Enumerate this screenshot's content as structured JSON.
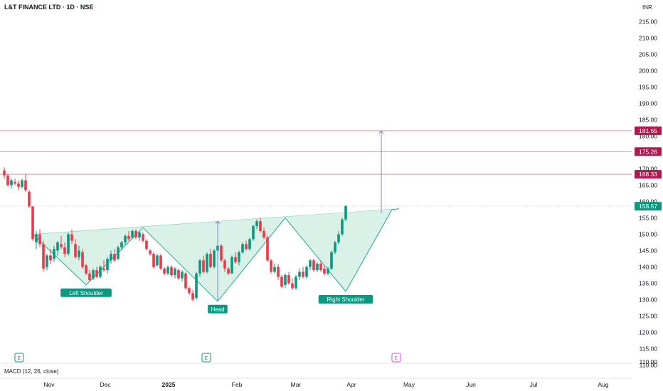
{
  "header": {
    "title": "L&T FINANCE LTD · 1D · NSE",
    "currency": "INR"
  },
  "indicator": {
    "macd_label": "MACD (12, 26, close)"
  },
  "chart_data": {
    "type": "candlestick",
    "title": "L&T FINANCE LTD · 1D · NSE",
    "ylim": [
      107,
      218
    ],
    "y_ticks": [
      110,
      115,
      120,
      125,
      130,
      135,
      140,
      145,
      150,
      155,
      160,
      165,
      170,
      175,
      180,
      185,
      190,
      195,
      200,
      205,
      210,
      215
    ],
    "y_tick_labels": [
      "110.00",
      "115.00",
      "120.00",
      "125.00",
      "130.00",
      "135.00",
      "140.00",
      "145.00",
      "150.00",
      "155.00",
      "160.00",
      "165.00",
      "170.00",
      "175.00",
      "180.00",
      "185.00",
      "190.00",
      "195.00",
      "200.00",
      "205.00",
      "210.00",
      "215.00"
    ],
    "x_tick_labels": [
      "Nov",
      "Dec",
      "2025",
      "Feb",
      "Mar",
      "Apr",
      "May",
      "Jun",
      "Jul",
      "Aug"
    ],
    "last_price": 158.57,
    "colors": {
      "up": "#089981",
      "down": "#f23645",
      "level": "#e291a8",
      "badge": "#b2184e",
      "price_badge": "#089981",
      "pattern_fill": "#ccecdf",
      "pattern_line": "#22ab94",
      "arrow": "#7c86d1"
    },
    "price_levels": [
      {
        "value": 181.65,
        "label": "181.65"
      },
      {
        "value": 175.26,
        "label": "175.26"
      },
      {
        "value": 168.33,
        "label": "168.33"
      }
    ],
    "price_label": "158.57",
    "candles_ohlc": [
      [
        169.5,
        170.5,
        167.0,
        168.0
      ],
      [
        168.0,
        168.5,
        164.5,
        165.0
      ],
      [
        165.0,
        167.0,
        164.0,
        166.5
      ],
      [
        166.0,
        167.0,
        165.0,
        165.5
      ],
      [
        165.5,
        166.5,
        163.5,
        164.5
      ],
      [
        164.5,
        167.0,
        164.0,
        166.5
      ],
      [
        166.5,
        168.5,
        163.0,
        163.5
      ],
      [
        163.0,
        163.5,
        158.0,
        158.5
      ],
      [
        158.5,
        158.5,
        148.0,
        148.5
      ],
      [
        147.5,
        151.0,
        145.5,
        150.0
      ],
      [
        150.0,
        151.5,
        146.0,
        147.0
      ],
      [
        147.0,
        148.0,
        138.5,
        139.5
      ],
      [
        140.0,
        144.0,
        139.0,
        143.5
      ],
      [
        143.5,
        145.5,
        141.0,
        142.0
      ],
      [
        142.5,
        146.5,
        141.5,
        145.5
      ],
      [
        145.0,
        148.0,
        143.5,
        147.5
      ],
      [
        147.0,
        149.5,
        145.5,
        146.0
      ],
      [
        146.0,
        147.5,
        143.0,
        144.0
      ],
      [
        144.0,
        150.5,
        143.5,
        150.0
      ],
      [
        150.0,
        151.5,
        147.0,
        148.0
      ],
      [
        147.0,
        148.5,
        142.5,
        143.0
      ],
      [
        143.0,
        146.5,
        142.0,
        145.0
      ],
      [
        144.5,
        145.5,
        139.5,
        140.0
      ],
      [
        140.5,
        141.0,
        137.5,
        138.0
      ],
      [
        138.0,
        139.0,
        135.5,
        136.0
      ],
      [
        136.5,
        139.5,
        136.0,
        139.0
      ],
      [
        139.0,
        140.0,
        136.5,
        137.0
      ],
      [
        137.0,
        140.5,
        136.5,
        140.0
      ],
      [
        139.5,
        142.0,
        138.5,
        139.0
      ],
      [
        139.0,
        143.0,
        138.0,
        142.5
      ],
      [
        142.0,
        145.0,
        141.0,
        144.0
      ],
      [
        144.0,
        145.5,
        141.5,
        142.0
      ],
      [
        142.5,
        146.5,
        142.0,
        146.0
      ],
      [
        146.0,
        148.0,
        145.0,
        147.5
      ],
      [
        147.5,
        150.0,
        146.5,
        149.5
      ],
      [
        149.5,
        151.0,
        148.0,
        148.5
      ],
      [
        149.0,
        151.5,
        148.5,
        151.0
      ],
      [
        151.0,
        151.5,
        148.5,
        149.0
      ],
      [
        149.0,
        151.0,
        148.0,
        150.5
      ],
      [
        150.0,
        150.5,
        147.5,
        148.0
      ],
      [
        148.0,
        148.5,
        145.0,
        145.5
      ],
      [
        145.0,
        145.5,
        143.5,
        144.0
      ],
      [
        144.0,
        144.5,
        139.5,
        140.0
      ],
      [
        140.5,
        144.0,
        140.0,
        143.5
      ],
      [
        143.5,
        144.0,
        139.0,
        139.5
      ],
      [
        139.5,
        140.0,
        137.5,
        138.0
      ],
      [
        138.0,
        140.5,
        137.5,
        140.0
      ],
      [
        140.0,
        140.5,
        137.0,
        137.5
      ],
      [
        137.5,
        140.0,
        136.5,
        139.5
      ],
      [
        139.0,
        139.5,
        136.0,
        136.5
      ],
      [
        136.5,
        139.0,
        135.5,
        138.5
      ],
      [
        138.0,
        138.5,
        133.0,
        133.5
      ],
      [
        133.5,
        134.0,
        131.5,
        132.0
      ],
      [
        132.0,
        133.0,
        129.5,
        130.0
      ],
      [
        130.5,
        138.5,
        130.0,
        138.0
      ],
      [
        138.0,
        142.5,
        137.0,
        142.0
      ],
      [
        142.0,
        143.5,
        138.0,
        138.5
      ],
      [
        138.5,
        144.5,
        138.0,
        144.0
      ],
      [
        144.0,
        145.5,
        139.5,
        140.0
      ],
      [
        140.0,
        145.5,
        139.5,
        145.0
      ],
      [
        145.0,
        147.5,
        144.0,
        146.5
      ],
      [
        146.5,
        147.0,
        141.5,
        142.0
      ],
      [
        142.0,
        142.5,
        138.5,
        139.5
      ],
      [
        139.5,
        140.0,
        137.5,
        138.0
      ],
      [
        138.0,
        143.5,
        138.0,
        143.0
      ],
      [
        143.0,
        144.5,
        141.0,
        141.5
      ],
      [
        141.5,
        145.0,
        140.5,
        144.5
      ],
      [
        144.5,
        147.5,
        144.0,
        147.0
      ],
      [
        147.0,
        148.0,
        145.0,
        145.5
      ],
      [
        145.5,
        149.0,
        145.0,
        148.5
      ],
      [
        148.5,
        153.0,
        148.0,
        152.5
      ],
      [
        152.5,
        154.5,
        151.5,
        154.0
      ],
      [
        154.0,
        155.0,
        150.5,
        151.0
      ],
      [
        151.0,
        152.0,
        148.5,
        149.0
      ],
      [
        149.0,
        149.5,
        141.5,
        142.0
      ],
      [
        142.0,
        142.5,
        138.0,
        138.5
      ],
      [
        138.5,
        141.0,
        138.0,
        140.0
      ],
      [
        140.0,
        141.0,
        136.0,
        137.0
      ],
      [
        137.0,
        137.5,
        133.5,
        134.0
      ],
      [
        134.5,
        138.0,
        133.5,
        137.5
      ],
      [
        137.5,
        138.5,
        134.5,
        135.0
      ],
      [
        135.0,
        136.5,
        133.0,
        133.5
      ],
      [
        133.5,
        137.5,
        133.0,
        137.0
      ],
      [
        137.0,
        139.5,
        136.0,
        138.5
      ],
      [
        138.5,
        140.0,
        136.5,
        137.0
      ],
      [
        137.0,
        140.5,
        136.5,
        140.0
      ],
      [
        140.0,
        142.5,
        139.0,
        142.0
      ],
      [
        142.0,
        142.5,
        138.5,
        139.0
      ],
      [
        139.0,
        141.5,
        138.5,
        141.0
      ],
      [
        141.0,
        142.0,
        138.5,
        139.0
      ],
      [
        139.5,
        140.5,
        137.5,
        138.0
      ],
      [
        138.0,
        140.0,
        137.5,
        139.5
      ],
      [
        139.5,
        145.0,
        139.0,
        144.5
      ],
      [
        144.5,
        148.0,
        144.0,
        147.5
      ],
      [
        147.5,
        151.0,
        147.0,
        150.0
      ],
      [
        150.0,
        155.0,
        149.5,
        154.5
      ],
      [
        154.5,
        159.0,
        154.0,
        158.57
      ]
    ],
    "pattern": {
      "labels": [
        "Left Shoulder",
        "Head",
        "Right Shoulder"
      ],
      "vertices": [
        [
          8,
          150.0
        ],
        [
          23,
          134.5
        ],
        [
          39,
          152.0
        ],
        [
          60,
          129.5
        ],
        [
          79,
          155.0
        ],
        [
          96,
          132.5
        ],
        [
          109,
          157.5
        ]
      ],
      "neckline": [
        [
          8,
          150.0
        ],
        [
          109,
          157.5
        ]
      ],
      "head_arrow": {
        "x": 60,
        "from": 129.5,
        "to": 154.0
      },
      "target_arrow": {
        "x": 106,
        "from": 156.5,
        "to": 181.65
      }
    },
    "events": [
      "E",
      "E",
      "E"
    ]
  }
}
